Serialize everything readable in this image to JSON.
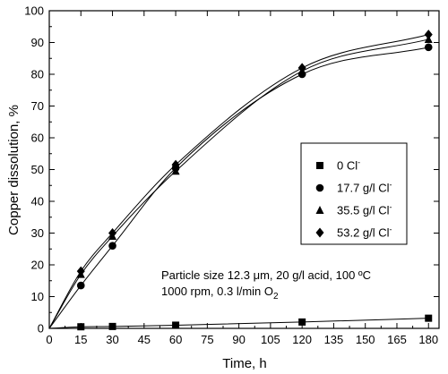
{
  "chart_data": {
    "type": "scatter",
    "title": "",
    "xlabel": "Time, h",
    "ylabel": "Copper dissolution, %",
    "xlim": [
      0,
      185
    ],
    "ylim": [
      0,
      100
    ],
    "x_ticks": [
      0,
      15,
      30,
      45,
      60,
      75,
      90,
      105,
      120,
      135,
      150,
      165,
      180
    ],
    "y_ticks": [
      0,
      10,
      20,
      30,
      40,
      50,
      60,
      70,
      80,
      90,
      100
    ],
    "grid": false,
    "legend_position": "right",
    "series": [
      {
        "name": "0 Cl",
        "name_sup": "-",
        "marker": "square",
        "x": [
          0,
          15,
          30,
          60,
          120,
          180
        ],
        "y": [
          0,
          0.5,
          0.6,
          1.0,
          2.0,
          3.2
        ]
      },
      {
        "name": "17.7 g/l Cl",
        "name_sup": "-",
        "marker": "circle",
        "x": [
          0,
          15,
          30,
          60,
          120,
          180
        ],
        "y": [
          0,
          13.5,
          26,
          50.5,
          80,
          88.5
        ]
      },
      {
        "name": "35.5 g/l Cl",
        "name_sup": "-",
        "marker": "triangle",
        "x": [
          0,
          15,
          30,
          60,
          120,
          180
        ],
        "y": [
          0,
          17,
          29,
          49.5,
          81,
          91
        ]
      },
      {
        "name": "53.2 g/l Cl",
        "name_sup": "-",
        "marker": "diamond",
        "x": [
          0,
          15,
          30,
          60,
          120,
          180
        ],
        "y": [
          0,
          18,
          30,
          51.5,
          82,
          92.5
        ]
      }
    ],
    "annotations": {
      "line1": "Particle size 12.3 μm, 20 g/l acid, 100 ºC",
      "line2": "1000 rpm, 0.3 l/min O",
      "line2_sub": "2"
    }
  }
}
